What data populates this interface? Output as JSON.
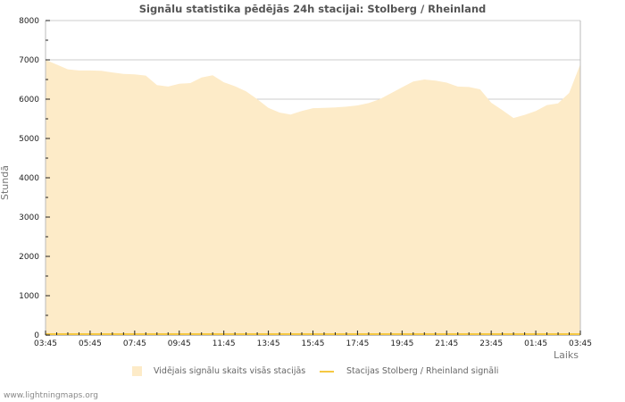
{
  "title": "Signālu statistika pēdējās 24h stacijai: Stolberg / Rheinland",
  "axes": {
    "ylabel": "Stundā",
    "xlabel": "Laiks",
    "yticks": [
      "0",
      "1000",
      "2000",
      "3000",
      "4000",
      "5000",
      "6000",
      "7000",
      "8000"
    ],
    "xticks": [
      "03:45",
      "05:45",
      "07:45",
      "09:45",
      "11:45",
      "13:45",
      "15:45",
      "17:45",
      "19:45",
      "21:45",
      "23:45",
      "01:45",
      "03:45"
    ]
  },
  "legend": {
    "avg_label": "Vidējais signālu skaits visās stacijās",
    "station_label": "Stacijas Stolberg / Rheinland signāli"
  },
  "footer": "www.lightningmaps.org",
  "colors": {
    "area_fill": "#fdebc8",
    "station_line": "#f5c842",
    "grid": "#cccccc",
    "axis": "#bbbbbb"
  },
  "chart_data": {
    "type": "area",
    "title": "Signālu statistika pēdējās 24h stacijai: Stolberg / Rheinland",
    "xlabel": "Laiks",
    "ylabel": "Stundā",
    "ylim": [
      0,
      8000
    ],
    "grid": true,
    "legend_position": "bottom",
    "x": [
      "03:45",
      "04:15",
      "04:45",
      "05:15",
      "05:45",
      "06:15",
      "06:45",
      "07:15",
      "07:45",
      "08:15",
      "08:45",
      "09:15",
      "09:45",
      "10:15",
      "10:45",
      "11:15",
      "11:45",
      "12:15",
      "12:45",
      "13:15",
      "13:45",
      "14:15",
      "14:45",
      "15:15",
      "15:45",
      "16:15",
      "16:45",
      "17:15",
      "17:45",
      "18:15",
      "18:45",
      "19:15",
      "19:45",
      "20:15",
      "20:45",
      "21:15",
      "21:45",
      "22:15",
      "22:45",
      "23:15",
      "23:45",
      "00:15",
      "00:45",
      "01:15",
      "01:45",
      "02:15",
      "02:45",
      "03:15",
      "03:45"
    ],
    "series": [
      {
        "name": "Vidējais signālu skaits visās stacijās",
        "style": "area",
        "values": [
          7000,
          6880,
          6760,
          6730,
          6730,
          6720,
          6680,
          6640,
          6630,
          6600,
          6360,
          6320,
          6390,
          6410,
          6550,
          6610,
          6430,
          6330,
          6200,
          6000,
          5780,
          5660,
          5610,
          5700,
          5770,
          5780,
          5790,
          5810,
          5840,
          5900,
          6000,
          6150,
          6300,
          6450,
          6500,
          6470,
          6420,
          6320,
          6310,
          6250,
          5910,
          5720,
          5520,
          5600,
          5700,
          5850,
          5890,
          6160,
          6890
        ]
      },
      {
        "name": "Stacijas Stolberg / Rheinland signāli",
        "style": "line",
        "values": [
          0,
          0,
          0,
          0,
          0,
          0,
          0,
          0,
          0,
          0,
          0,
          0,
          0,
          0,
          0,
          0,
          0,
          0,
          0,
          0,
          0,
          0,
          0,
          0,
          0,
          0,
          0,
          0,
          0,
          0,
          0,
          0,
          0,
          0,
          0,
          0,
          0,
          0,
          0,
          0,
          0,
          0,
          0,
          0,
          0,
          0,
          0,
          0,
          0
        ]
      }
    ]
  }
}
